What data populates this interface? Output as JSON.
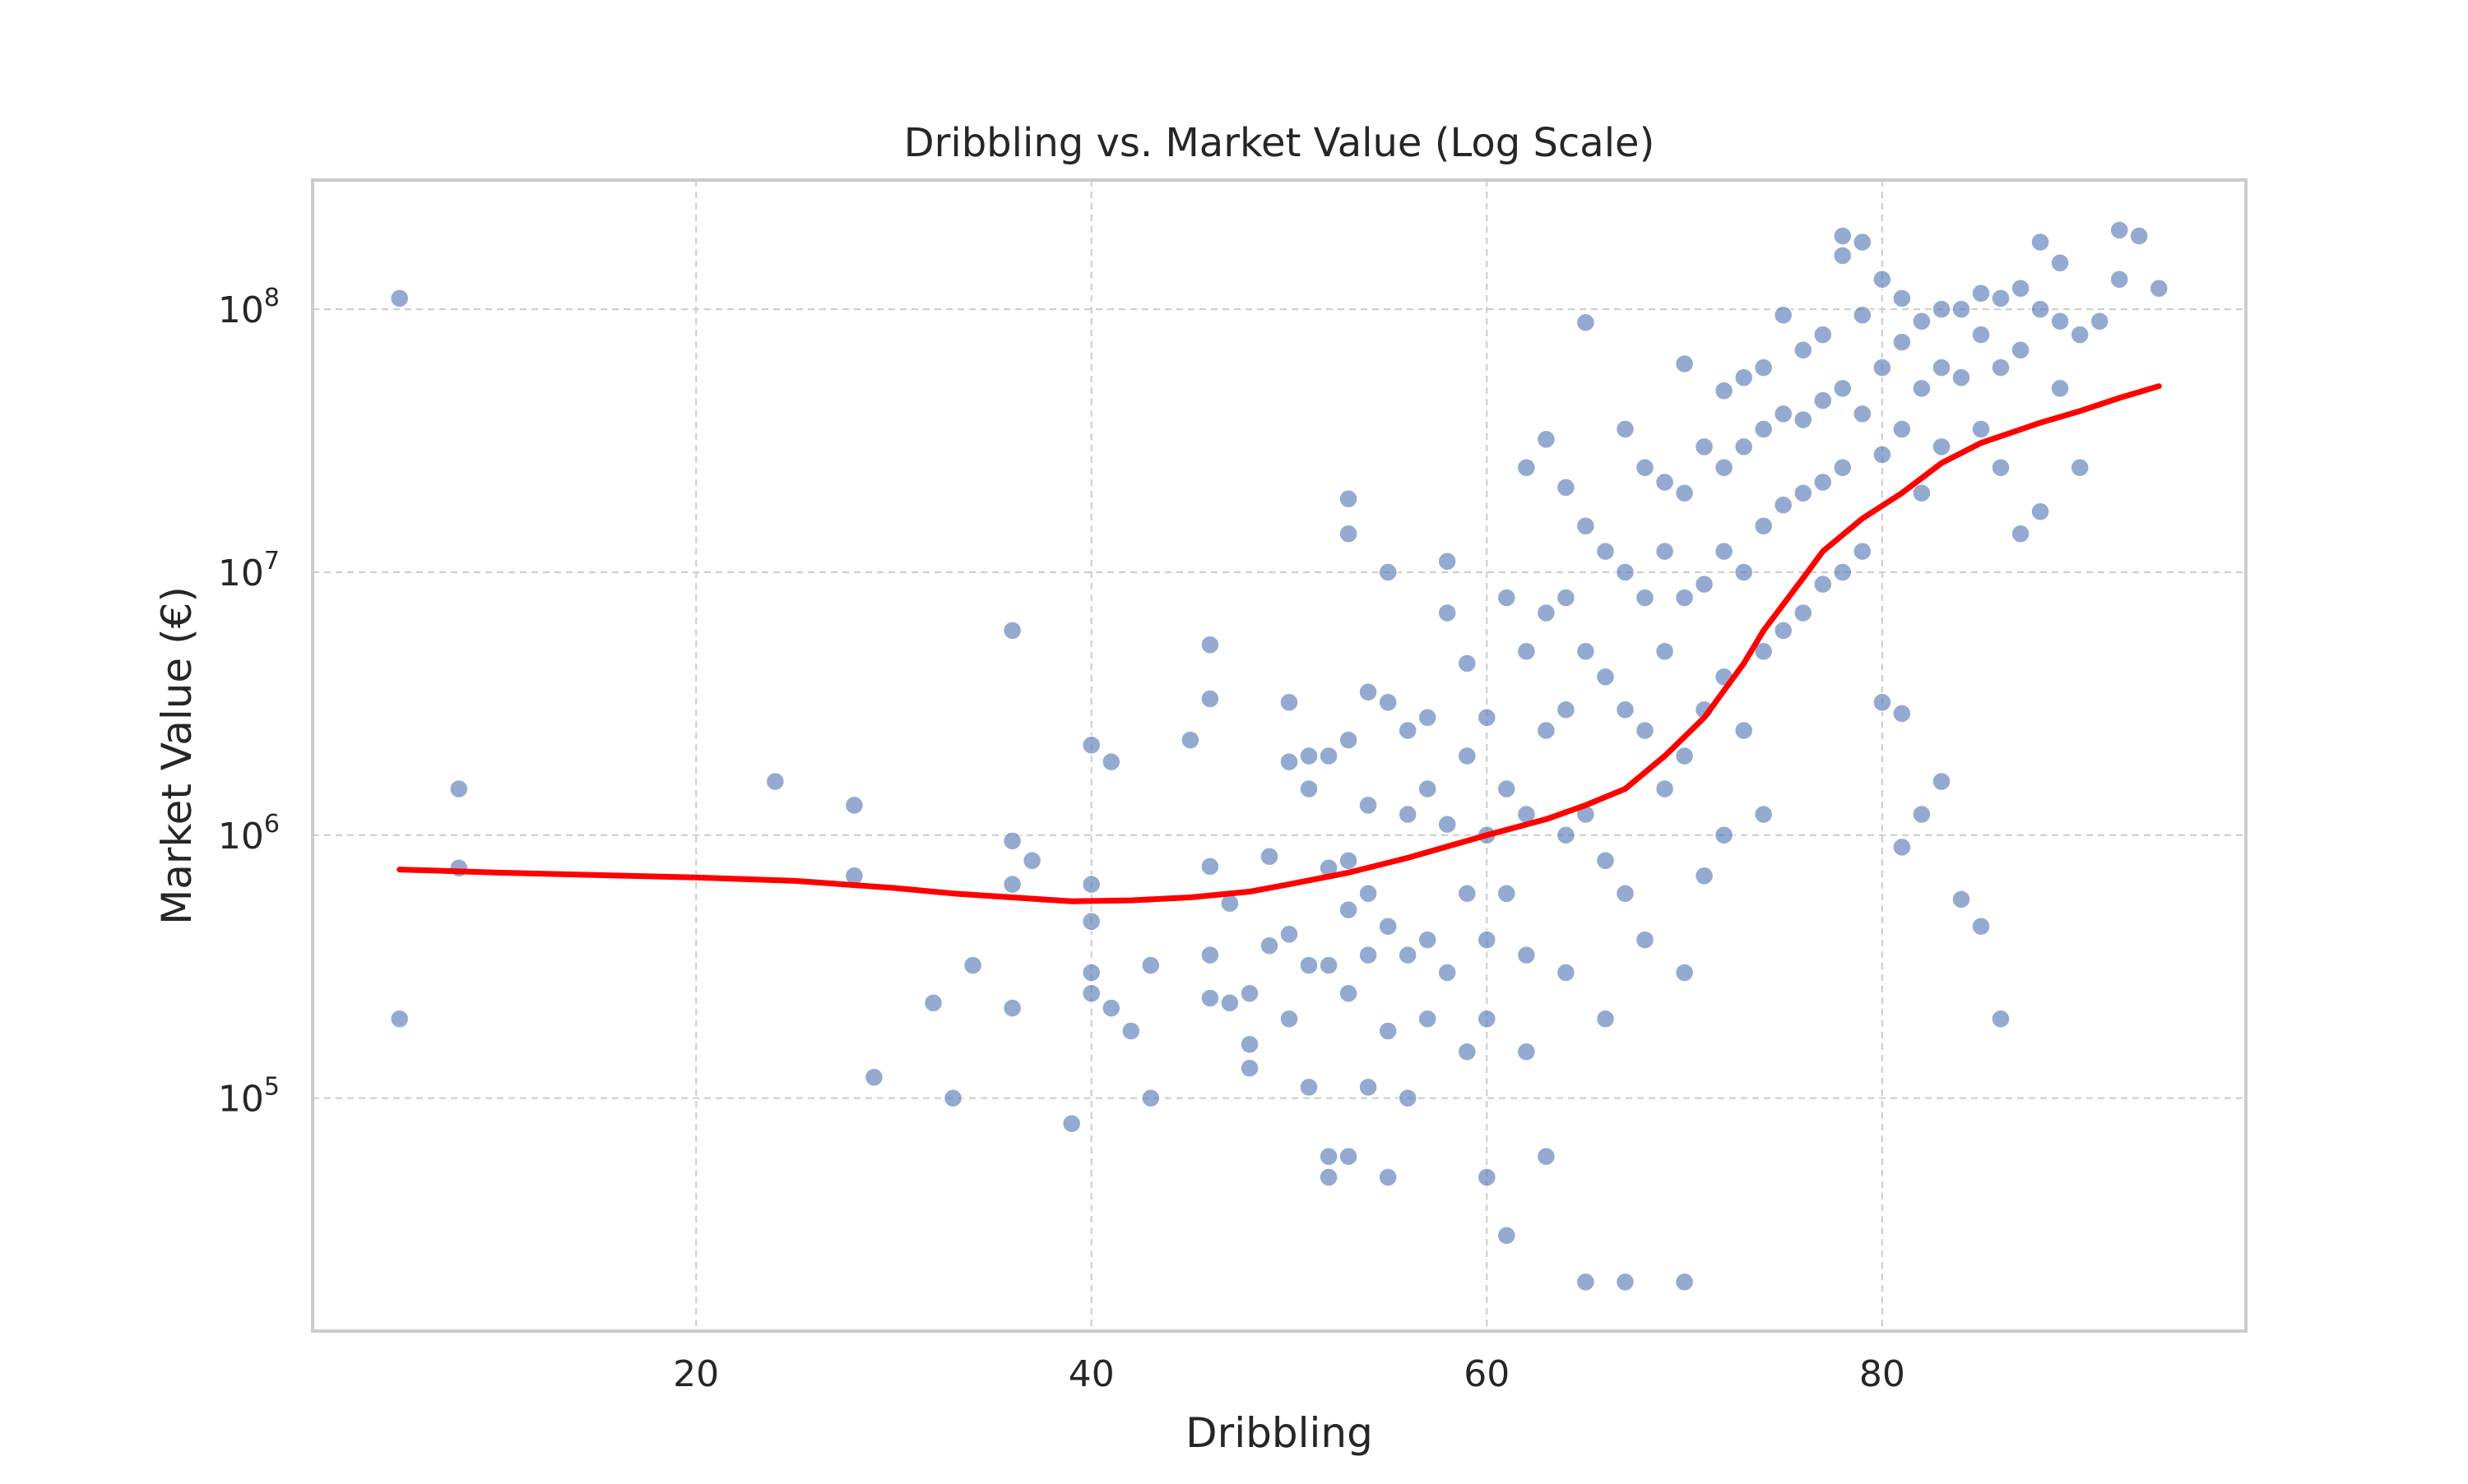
{
  "chart_data": {
    "type": "scatter",
    "title": "Dribbling vs. Market Value (Log Scale)",
    "xlabel": "Dribbling",
    "ylabel": "Market Value (€)",
    "xlim": [
      0.6,
      98.4
    ],
    "ylim": [
      13000,
      310000000
    ],
    "y_scale": "log",
    "grid": true,
    "x_ticks": [
      20,
      40,
      60,
      80
    ],
    "y_ticks": [
      {
        "value": 100000,
        "base": "10",
        "exp": "5"
      },
      {
        "value": 1000000,
        "base": "10",
        "exp": "6"
      },
      {
        "value": 10000000,
        "base": "10",
        "exp": "7"
      },
      {
        "value": 100000000,
        "base": "10",
        "exp": "8"
      }
    ],
    "colors": {
      "points": "#4c72b0",
      "trend": "#ff0000",
      "grid": "#cccccc",
      "frame": "#cccccc"
    },
    "series": [
      {
        "kind": "points",
        "x": [
          5,
          5,
          8,
          8,
          24,
          28,
          28,
          29,
          32,
          33,
          34,
          36,
          36,
          36,
          36,
          37,
          39,
          40,
          40,
          40,
          40,
          40,
          41,
          41,
          42,
          43,
          43,
          45,
          46,
          46,
          46,
          46,
          46,
          47,
          47,
          48,
          48,
          48,
          49,
          49,
          50,
          50,
          50,
          50,
          51,
          51,
          51,
          51,
          52,
          52,
          52,
          52,
          52,
          53,
          53,
          53,
          53,
          53,
          53,
          53,
          54,
          54,
          54,
          54,
          54,
          55,
          55,
          55,
          55,
          55,
          56,
          56,
          56,
          56,
          57,
          57,
          57,
          57,
          58,
          58,
          58,
          58,
          59,
          59,
          59,
          59,
          60,
          60,
          60,
          60,
          60,
          61,
          61,
          61,
          61,
          62,
          62,
          62,
          62,
          62,
          63,
          63,
          63,
          63,
          64,
          64,
          64,
          64,
          64,
          65,
          65,
          65,
          65,
          65,
          66,
          66,
          66,
          66,
          67,
          67,
          67,
          67,
          67,
          68,
          68,
          68,
          68,
          69,
          69,
          69,
          69,
          70,
          70,
          70,
          70,
          70,
          70,
          71,
          71,
          71,
          71,
          72,
          72,
          72,
          72,
          72,
          73,
          73,
          73,
          73,
          74,
          74,
          74,
          74,
          74,
          75,
          75,
          75,
          75,
          76,
          76,
          76,
          76,
          77,
          77,
          77,
          77,
          78,
          78,
          78,
          78,
          78,
          79,
          79,
          79,
          79,
          80,
          80,
          80,
          80,
          81,
          81,
          81,
          81,
          81,
          82,
          82,
          82,
          82,
          83,
          83,
          83,
          83,
          84,
          84,
          84,
          85,
          85,
          85,
          85,
          86,
          86,
          86,
          86,
          87,
          87,
          87,
          88,
          88,
          88,
          89,
          89,
          89,
          90,
          90,
          91,
          92,
          92,
          93,
          94
        ],
        "y": [
          110000000,
          200000,
          1500000,
          750000,
          1600000,
          1300000,
          700000,
          120000,
          230000,
          100000,
          320000,
          950000,
          650000,
          220000,
          6000000,
          800000,
          80000,
          2200000,
          650000,
          470000,
          300000,
          250000,
          1900000,
          220000,
          180000,
          320000,
          100000,
          2300000,
          5300000,
          3300000,
          760000,
          350000,
          240000,
          550000,
          230000,
          250000,
          130000,
          160000,
          830000,
          380000,
          3200000,
          1900000,
          200000,
          420000,
          2000000,
          1500000,
          320000,
          110000,
          2000000,
          750000,
          320000,
          60000,
          50000,
          19000000,
          14000000,
          2300000,
          800000,
          520000,
          250000,
          60000,
          3500000,
          1300000,
          600000,
          350000,
          110000,
          10000000,
          3200000,
          450000,
          180000,
          50000,
          2500000,
          1200000,
          350000,
          100000,
          2800000,
          1500000,
          400000,
          200000,
          11000000,
          7000000,
          1100000,
          300000,
          4500000,
          2000000,
          600000,
          150000,
          2800000,
          1000000,
          400000,
          200000,
          50000,
          8000000,
          1500000,
          600000,
          30000,
          25000000,
          5000000,
          1200000,
          350000,
          150000,
          32000000,
          7000000,
          2500000,
          60000,
          21000000,
          8000000,
          3000000,
          1000000,
          300000,
          89000000,
          15000000,
          5000000,
          1200000,
          20000,
          12000000,
          4000000,
          800000,
          200000,
          35000000,
          10000000,
          3000000,
          600000,
          20000,
          25000000,
          8000000,
          2500000,
          400000,
          22000000,
          12000000,
          5000000,
          1500000,
          62000000,
          20000000,
          8000000,
          2000000,
          300000,
          20000,
          30000000,
          9000000,
          3000000,
          700000,
          49000000,
          25000000,
          12000000,
          4000000,
          1000000,
          55000000,
          30000000,
          10000000,
          2500000,
          60000000,
          35000000,
          15000000,
          5000000,
          1200000,
          95000000,
          40000000,
          18000000,
          6000000,
          70000000,
          38000000,
          20000000,
          7000000,
          80000000,
          45000000,
          22000000,
          9000000,
          190000000,
          160000000,
          50000000,
          25000000,
          10000000,
          180000000,
          95000000,
          40000000,
          12000000,
          130000000,
          60000000,
          28000000,
          3200000,
          110000000,
          75000000,
          35000000,
          2900000,
          900000,
          90000000,
          50000000,
          20000000,
          1200000,
          100000000,
          60000000,
          30000000,
          1600000,
          100000000,
          55000000,
          570000,
          115000000,
          80000000,
          35000000,
          450000,
          110000000,
          60000000,
          25000000,
          200000,
          120000000,
          70000000,
          14000000,
          180000000,
          100000000,
          17000000,
          150000000,
          90000000,
          50000000,
          80000000,
          25000000,
          90000000,
          200000000,
          130000000,
          190000000,
          120000000
        ]
      },
      {
        "kind": "trend",
        "x": [
          5,
          10,
          20,
          25,
          30,
          33,
          36,
          39,
          42,
          45,
          48,
          50,
          53,
          56,
          60,
          63,
          65,
          67,
          69,
          71,
          73,
          74,
          76,
          77,
          79,
          81,
          83,
          85,
          88,
          90,
          92,
          94
        ],
        "y": [
          740000,
          720000,
          690000,
          670000,
          630000,
          600000,
          580000,
          560000,
          565000,
          580000,
          610000,
          650000,
          720000,
          820000,
          1000000,
          1150000,
          1300000,
          1500000,
          2000000,
          2800000,
          4500000,
          6000000,
          9500000,
          12000000,
          16000000,
          20000000,
          26000000,
          31000000,
          37000000,
          41000000,
          46000000,
          51000000
        ]
      }
    ]
  }
}
